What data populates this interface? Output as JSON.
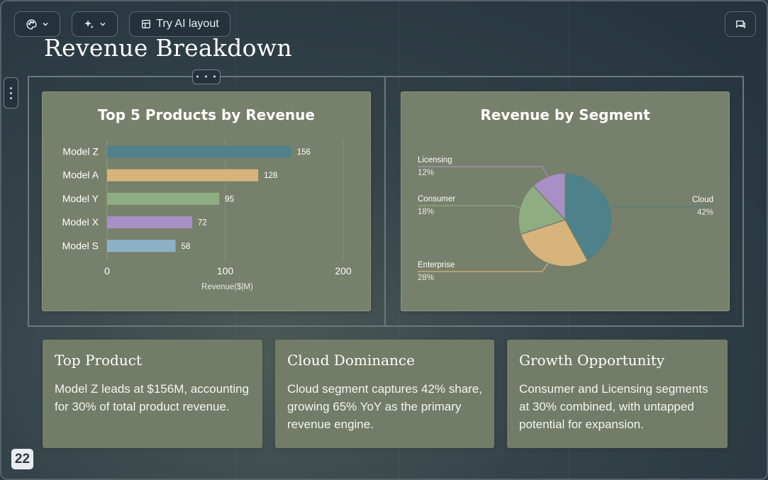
{
  "toolbar": {
    "theme_icon": "palette-icon",
    "ai_icon": "sparkle-icon",
    "layout_icon": "layout-icon",
    "try_ai_label": "Try AI layout",
    "comment_icon": "comment-icon"
  },
  "slide": {
    "title": "Revenue Breakdown",
    "page_number": "22"
  },
  "bar_card": {
    "title": "Top 5 Products by Revenue"
  },
  "pie_card": {
    "title": "Revenue by Segment"
  },
  "chart_data": [
    {
      "type": "bar",
      "orientation": "horizontal",
      "title": "Top 5 Products by Revenue",
      "categories": [
        "Model Z",
        "Model A",
        "Model Y",
        "Model X",
        "Model S"
      ],
      "values": [
        156,
        128,
        95,
        72,
        58
      ],
      "colors": [
        "#4e8189",
        "#d6b47c",
        "#8fad82",
        "#a88fc6",
        "#8db2c8"
      ],
      "xlabel": "Revenue($|M)",
      "xlim": [
        0,
        200
      ],
      "xticks": [
        "0",
        "100",
        "200"
      ],
      "grid": true,
      "legend": "none"
    },
    {
      "type": "pie",
      "title": "Revenue by Segment",
      "labels": [
        "Cloud",
        "Enterprise",
        "Consumer",
        "Licensing"
      ],
      "values": [
        42,
        28,
        18,
        12
      ],
      "value_labels": [
        "42%",
        "28%",
        "18%",
        "12%"
      ],
      "colors": [
        "#4e8189",
        "#d6b47c",
        "#8fad82",
        "#a88fc6"
      ],
      "legend": "none"
    }
  ],
  "insights": [
    {
      "title": "Top Product",
      "body": "Model Z leads at $156M, accounting for 30% of total product revenue."
    },
    {
      "title": "Cloud Dominance",
      "body": "Cloud segment captures 42% share, growing 65% YoY as the primary revenue engine."
    },
    {
      "title": "Growth Opportunity",
      "body": "Consumer and Licensing segments at 30% combined, with untapped potential for expansion."
    }
  ]
}
